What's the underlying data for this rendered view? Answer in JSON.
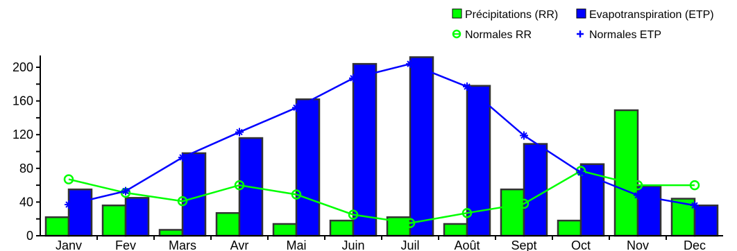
{
  "chart_data": {
    "type": "bar",
    "categories": [
      "Janv",
      "Fev",
      "Mars",
      "Avr",
      "Mai",
      "Juin",
      "Juil",
      "Août",
      "Sept",
      "Oct",
      "Nov",
      "Dec"
    ],
    "ylim": [
      0,
      210
    ],
    "yticks": [
      0,
      40,
      80,
      120,
      160,
      200
    ],
    "grid": false,
    "legend_position": "top-right",
    "bar_series": [
      {
        "name": "Précipitations (RR)",
        "color": "#00ff00",
        "values": [
          22,
          36,
          7,
          27,
          14,
          18,
          22,
          14,
          55,
          18,
          149,
          44
        ]
      },
      {
        "name": "Evapotranspiration (ETP)",
        "color": "#0000ff",
        "values": [
          55,
          45,
          98,
          116,
          162,
          204,
          212,
          178,
          109,
          85,
          59,
          36
        ]
      }
    ],
    "line_series": [
      {
        "name": "Normales RR",
        "color": "#00ff00",
        "marker": "circle",
        "values": [
          67,
          51,
          41,
          60,
          49,
          25,
          15,
          27,
          38,
          77,
          60,
          60
        ]
      },
      {
        "name": "Normales ETP",
        "color": "#0000ff",
        "marker": "star",
        "values": [
          37,
          53,
          93,
          123,
          152,
          187,
          204,
          177,
          119,
          75,
          48,
          36
        ]
      }
    ]
  }
}
